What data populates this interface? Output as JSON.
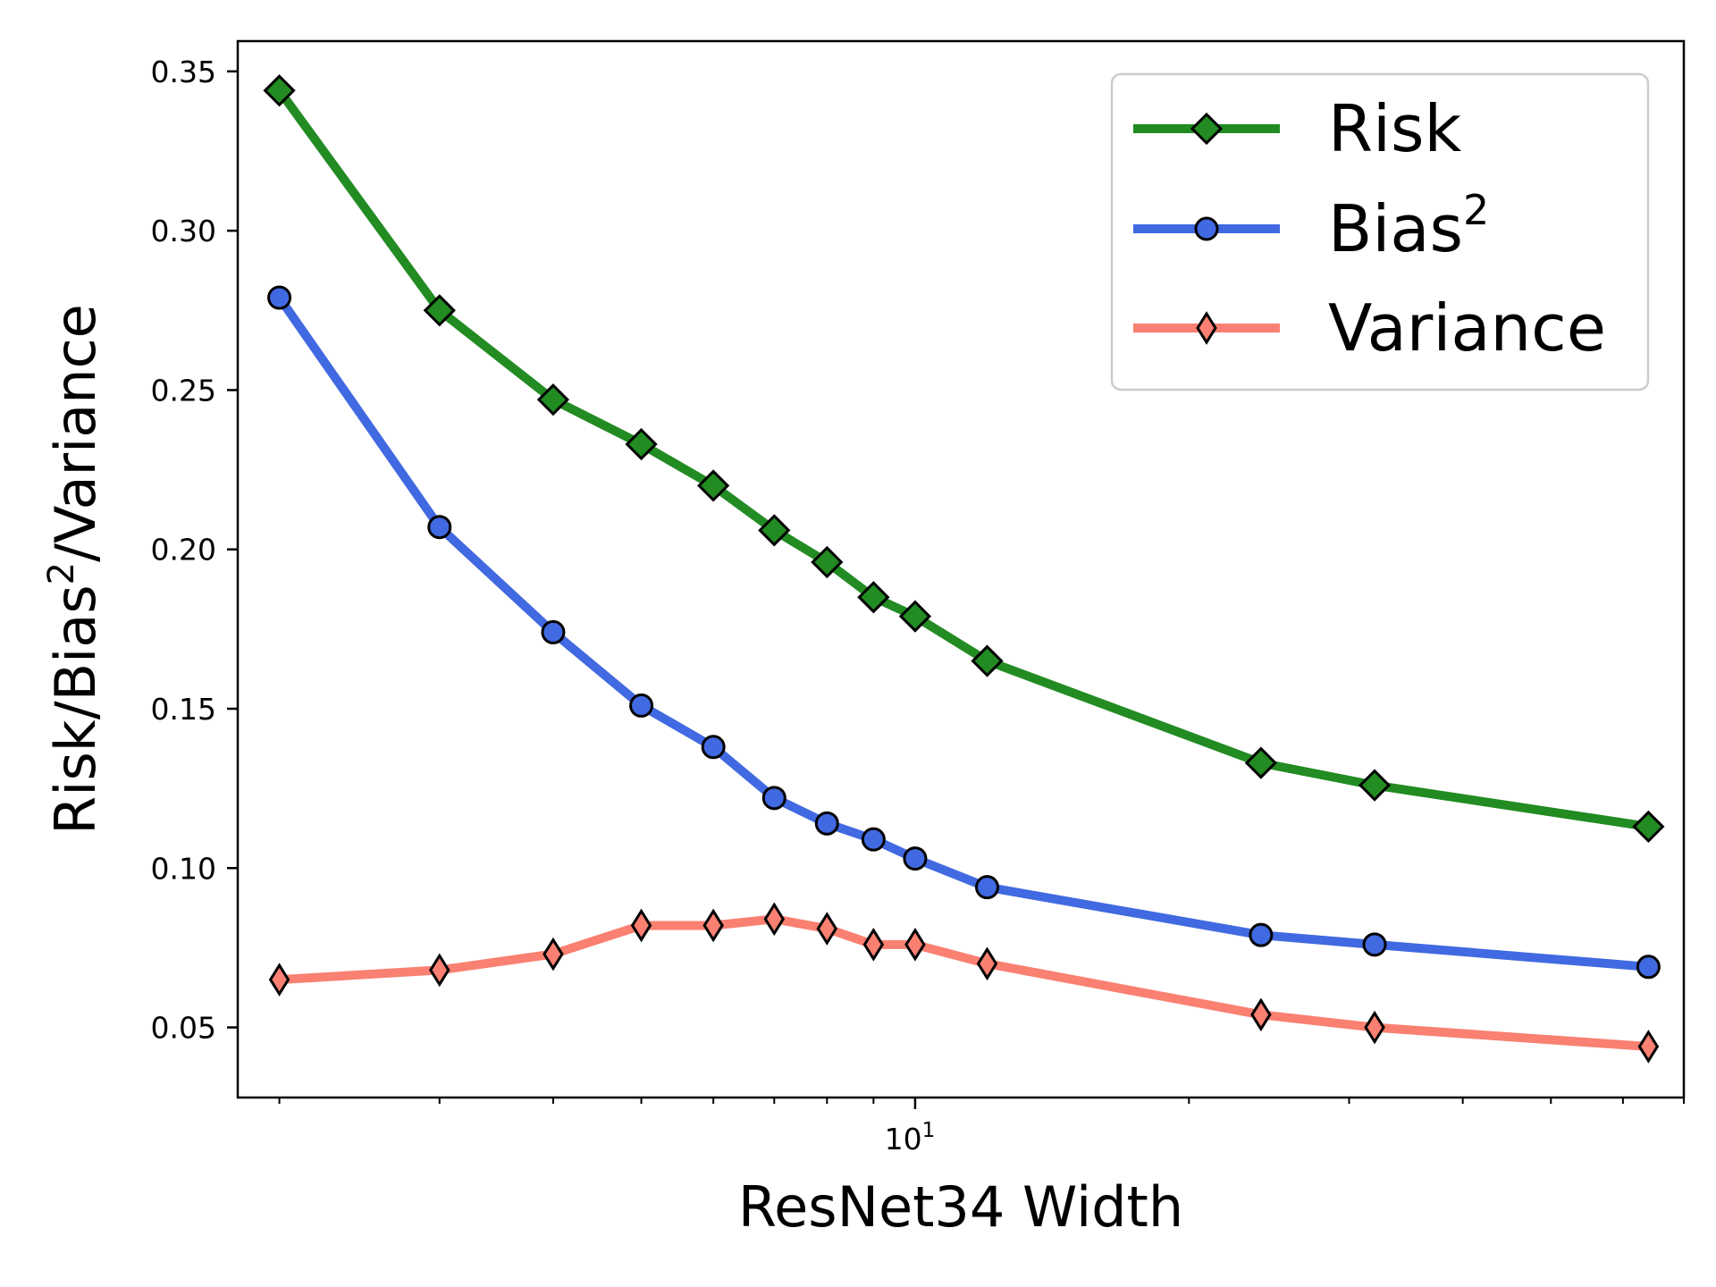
{
  "chart_data": {
    "type": "line",
    "title": "",
    "xlabel": "ResNet34 Width",
    "ylabel": "Risk/Bias²/Variance",
    "xscale": "log",
    "xlim": [
      1.8,
      70
    ],
    "ylim": [
      0.028,
      0.3595
    ],
    "grid": false,
    "legend_position": "top-right",
    "x": [
      2,
      3,
      4,
      5,
      6,
      7,
      8,
      9,
      10,
      12,
      24,
      32,
      64
    ],
    "x_tick_labels": [
      {
        "base": "10",
        "exp": "1",
        "value": 10
      }
    ],
    "y_ticks": [
      0.05,
      0.1,
      0.15,
      0.2,
      0.25,
      0.3,
      0.35
    ],
    "y_tick_labels": [
      "0.05",
      "0.10",
      "0.15",
      "0.20",
      "0.25",
      "0.30",
      "0.35"
    ],
    "series": [
      {
        "name": "Risk",
        "legend_base": "Risk",
        "legend_sup": "",
        "color": "#228B22",
        "marker": "diamond",
        "values": [
          0.344,
          0.275,
          0.247,
          0.233,
          0.22,
          0.206,
          0.196,
          0.185,
          0.179,
          0.165,
          0.133,
          0.126,
          0.113
        ]
      },
      {
        "name": "Bias²",
        "legend_base": "Bias",
        "legend_sup": "2",
        "color": "#4169E1",
        "marker": "circle",
        "values": [
          0.279,
          0.207,
          0.174,
          0.151,
          0.138,
          0.122,
          0.114,
          0.109,
          0.103,
          0.094,
          0.079,
          0.076,
          0.069
        ]
      },
      {
        "name": "Variance",
        "legend_base": "Variance",
        "legend_sup": "",
        "color": "#FA8072",
        "marker": "thin_diamond",
        "values": [
          0.065,
          0.068,
          0.073,
          0.082,
          0.082,
          0.084,
          0.081,
          0.076,
          0.076,
          0.07,
          0.054,
          0.05,
          0.044
        ]
      }
    ]
  }
}
